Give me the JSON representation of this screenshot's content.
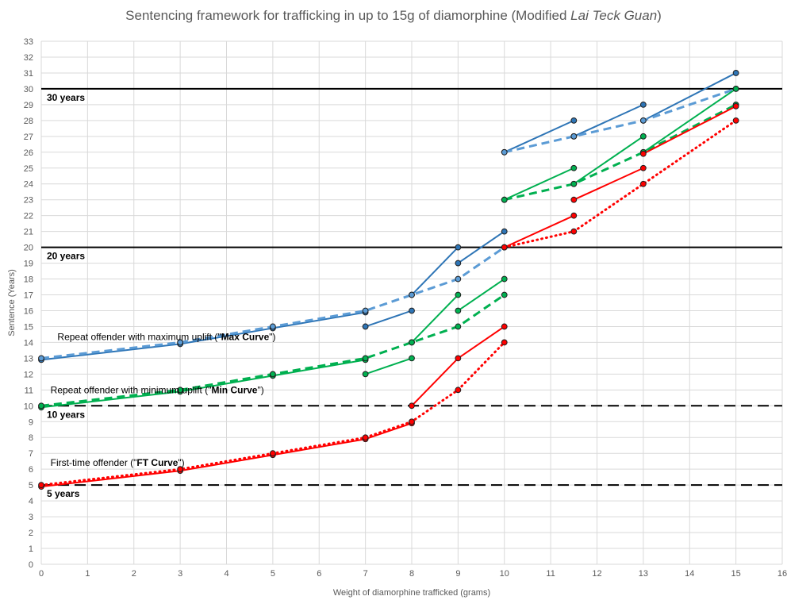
{
  "chart_data": {
    "type": "line",
    "title": {
      "prefix": "Sentencing framework for trafficking in up to 15g of diamorphine (Modified ",
      "italic": "Lai Teck Guan",
      "suffix": ")"
    },
    "xlabel": "Weight of diamorphine trafficked (grams)",
    "ylabel": "Sentence (Years)",
    "xlim": [
      0,
      16
    ],
    "ylim": [
      0,
      33
    ],
    "x_ticks": [
      0,
      1,
      2,
      3,
      4,
      5,
      6,
      7,
      8,
      9,
      10,
      11,
      12,
      13,
      14,
      15,
      16
    ],
    "y_ticks": [
      0,
      1,
      2,
      3,
      4,
      5,
      6,
      7,
      8,
      9,
      10,
      11,
      12,
      13,
      14,
      15,
      16,
      17,
      18,
      19,
      20,
      21,
      22,
      23,
      24,
      25,
      26,
      27,
      28,
      29,
      30,
      31,
      32,
      33
    ],
    "grid": true,
    "reference_lines": [
      {
        "y": 30,
        "label": "30 years",
        "style": "solid"
      },
      {
        "y": 20,
        "label": "20 years",
        "style": "solid"
      },
      {
        "y": 10,
        "label": "10 years",
        "style": "dashed"
      },
      {
        "y": 5,
        "label": "5 years",
        "style": "dashed"
      }
    ],
    "annotations": [
      {
        "pre": "Repeat offender with maximum uplift (\"",
        "bold": "Max Curve",
        "post": "\")",
        "x": 0.35,
        "y": 14.35
      },
      {
        "pre": "Repeat offender with minimum uplift (\"",
        "bold": "Min Curve",
        "post": "\")",
        "x": 0.2,
        "y": 11.0
      },
      {
        "pre": "First-time offender (\"",
        "bold": "FT Curve",
        "post": "\")",
        "x": 0.2,
        "y": 6.4
      }
    ],
    "colors": {
      "max": "#2e75b6",
      "max_light": "#5b9bd5",
      "min": "#00b050",
      "ft": "#ff0000",
      "ref": "#000000"
    },
    "series": [
      {
        "curve": "max",
        "style": "solid",
        "color": "#2e75b6",
        "points": [
          [
            0,
            12.9
          ],
          [
            3,
            13.9
          ],
          [
            5,
            14.9
          ],
          [
            7,
            15.9
          ]
        ]
      },
      {
        "curve": "max",
        "style": "solid",
        "color": "#2e75b6",
        "points": [
          [
            7,
            15
          ],
          [
            8,
            16
          ]
        ]
      },
      {
        "curve": "max",
        "style": "solid",
        "color": "#2e75b6",
        "points": [
          [
            8,
            17
          ],
          [
            9,
            20
          ]
        ]
      },
      {
        "curve": "max",
        "style": "solid",
        "color": "#2e75b6",
        "points": [
          [
            9,
            19
          ],
          [
            10,
            21
          ]
        ]
      },
      {
        "curve": "max",
        "style": "solid",
        "color": "#2e75b6",
        "points": [
          [
            10,
            26
          ],
          [
            11.5,
            28
          ]
        ]
      },
      {
        "curve": "max",
        "style": "solid",
        "color": "#2e75b6",
        "points": [
          [
            11.5,
            27
          ],
          [
            13,
            29
          ]
        ]
      },
      {
        "curve": "max",
        "style": "solid",
        "color": "#2e75b6",
        "points": [
          [
            13,
            28
          ],
          [
            15,
            31
          ]
        ]
      },
      {
        "curve": "max",
        "style": "dashed",
        "color": "#5b9bd5",
        "points": [
          [
            0,
            13
          ],
          [
            3,
            14
          ],
          [
            5,
            15
          ],
          [
            7,
            16
          ],
          [
            8,
            17
          ],
          [
            9,
            18
          ],
          [
            10,
            20
          ]
        ]
      },
      {
        "curve": "max",
        "style": "dashed",
        "color": "#5b9bd5",
        "points": [
          [
            10,
            26
          ],
          [
            11.5,
            27
          ],
          [
            13,
            28
          ],
          [
            15,
            30
          ]
        ]
      },
      {
        "curve": "min",
        "style": "solid",
        "color": "#00b050",
        "points": [
          [
            0,
            9.9
          ],
          [
            3,
            10.9
          ],
          [
            5,
            11.9
          ],
          [
            7,
            12.9
          ]
        ]
      },
      {
        "curve": "min",
        "style": "solid",
        "color": "#00b050",
        "points": [
          [
            7,
            12
          ],
          [
            8,
            13
          ]
        ]
      },
      {
        "curve": "min",
        "style": "solid",
        "color": "#00b050",
        "points": [
          [
            8,
            14
          ],
          [
            9,
            17
          ]
        ]
      },
      {
        "curve": "min",
        "style": "solid",
        "color": "#00b050",
        "points": [
          [
            9,
            16
          ],
          [
            10,
            18
          ]
        ]
      },
      {
        "curve": "min",
        "style": "solid",
        "color": "#00b050",
        "points": [
          [
            10,
            23
          ],
          [
            11.5,
            25
          ]
        ]
      },
      {
        "curve": "min",
        "style": "solid",
        "color": "#00b050",
        "points": [
          [
            11.5,
            24
          ],
          [
            13,
            27
          ]
        ]
      },
      {
        "curve": "min",
        "style": "solid",
        "color": "#00b050",
        "points": [
          [
            13,
            26
          ],
          [
            15,
            30
          ]
        ]
      },
      {
        "curve": "min",
        "style": "dashed",
        "color": "#00b050",
        "points": [
          [
            0,
            10
          ],
          [
            3,
            11
          ],
          [
            5,
            12
          ],
          [
            7,
            13
          ],
          [
            8,
            14
          ],
          [
            9,
            15
          ],
          [
            10,
            17
          ]
        ]
      },
      {
        "curve": "min",
        "style": "dashed",
        "color": "#00b050",
        "points": [
          [
            10,
            23
          ],
          [
            11.5,
            24
          ],
          [
            13,
            26
          ],
          [
            15,
            29
          ]
        ]
      },
      {
        "curve": "ft",
        "style": "solid",
        "color": "#ff0000",
        "points": [
          [
            0,
            4.9
          ],
          [
            3,
            5.9
          ],
          [
            5,
            6.9
          ],
          [
            7,
            7.9
          ],
          [
            8,
            8.9
          ]
        ]
      },
      {
        "curve": "ft",
        "style": "solid",
        "color": "#ff0000",
        "points": [
          [
            8,
            10
          ],
          [
            9,
            13
          ],
          [
            10,
            15
          ]
        ]
      },
      {
        "curve": "ft",
        "style": "solid",
        "color": "#ff0000",
        "points": [
          [
            10,
            20
          ],
          [
            11.5,
            22
          ]
        ]
      },
      {
        "curve": "ft",
        "style": "solid",
        "color": "#ff0000",
        "points": [
          [
            11.5,
            23
          ],
          [
            13,
            25
          ]
        ]
      },
      {
        "curve": "ft",
        "style": "solid",
        "color": "#ff0000",
        "points": [
          [
            13,
            25.9
          ],
          [
            15,
            28.9
          ]
        ]
      },
      {
        "curve": "ft",
        "style": "dotted",
        "color": "#ff0000",
        "points": [
          [
            0,
            5
          ],
          [
            3,
            6
          ],
          [
            5,
            7
          ],
          [
            7,
            8
          ],
          [
            8,
            9
          ],
          [
            9,
            11
          ],
          [
            10,
            14
          ]
        ]
      },
      {
        "curve": "ft",
        "style": "dotted",
        "color": "#ff0000",
        "points": [
          [
            10,
            20
          ],
          [
            11.5,
            21
          ],
          [
            13,
            24
          ],
          [
            15,
            28
          ]
        ]
      }
    ]
  }
}
